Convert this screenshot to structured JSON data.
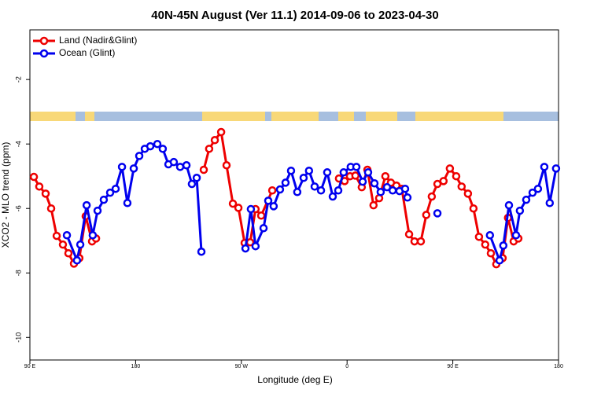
{
  "chart_data": {
    "type": "line",
    "title": "40N-45N August (Ver 11.1)   2014-09-06 to 2023-04-30",
    "x_label": "Longitude (deg E)",
    "y_label": "XCO2 - MLO trend (ppm)",
    "xlim": [
      90,
      540
    ],
    "xticks": [
      {
        "value": 90,
        "label": "90 E"
      },
      180,
      {
        "value": 270,
        "label": "90 W"
      },
      {
        "value": 360,
        "label": "0"
      },
      {
        "value": 450,
        "label": "90 E"
      },
      {
        "value": 540,
        "label": "180"
      }
    ],
    "ylim": [
      -10.7,
      -0.46
    ],
    "yticks": [
      -10,
      -8,
      -6,
      -4,
      -2
    ],
    "legend": "top-left",
    "series": [
      {
        "name": "Land (Nadir&Glint)",
        "color": "#ee0000",
        "x": [
          93.4,
          98,
          103.4,
          108.1,
          112.8,
          118.1,
          122.8,
          127.5,
          132.1,
          137.5,
          142.9,
          146.3,
          null,
          238,
          242.6,
          247.4,
          252.8,
          257.4,
          262.8,
          267.5,
          272.8,
          277.5,
          282.1,
          286.9,
          296.3,
          null,
          353.1,
          357.9,
          362.5,
          367.1,
          372.5,
          377.3,
          382.5,
          387.3,
          392.6,
          397.3,
          402,
          406.6,
          412.8,
          417.4,
          422.8,
          427.4,
          432.1,
          436.9,
          442.1,
          447.5,
          452.9,
          457.5,
          462.9,
          467.6,
          472.3,
          477.6,
          482.4,
          487,
          492.4,
          497,
          501.8,
          505.8
        ],
        "values": [
          -5.02,
          -5.32,
          -5.54,
          -6.0,
          -6.85,
          -7.12,
          -7.39,
          -7.71,
          -7.54,
          -6.24,
          -7.02,
          -6.93,
          null,
          -4.8,
          -4.15,
          -3.88,
          -3.63,
          -4.66,
          -5.85,
          -5.98,
          -7.07,
          -7.05,
          -6.02,
          -6.22,
          -5.44,
          null,
          -5.07,
          -5.15,
          -5.0,
          -4.98,
          -5.34,
          -4.8,
          -5.9,
          -5.68,
          -5.0,
          -5.2,
          -5.29,
          -5.39,
          -6.8,
          -7.02,
          -7.02,
          -6.2,
          -5.63,
          -5.24,
          -5.15,
          -4.76,
          -5.0,
          -5.32,
          -5.54,
          -6.0,
          -6.88,
          -7.12,
          -7.39,
          -7.73,
          -7.54,
          -6.29,
          -7.02,
          -6.93
        ]
      },
      {
        "name": "Ocean (Glint)",
        "color": "#0000ee",
        "x": [
          121.5,
          130.1,
          132.9,
          138.3,
          143.5,
          147.6,
          152.9,
          158.3,
          163,
          168.4,
          173,
          178.4,
          183.1,
          187.8,
          192.5,
          198.5,
          203.1,
          207.9,
          212.5,
          217.9,
          223.3,
          227.9,
          232,
          236,
          null,
          273.5,
          278.1,
          282.1,
          288.9,
          292.9,
          297.5,
          302.9,
          307.6,
          312.3,
          317.6,
          323,
          327.6,
          332.4,
          337.8,
          343.1,
          347.8,
          352.5,
          357.1,
          363.1,
          367.9,
          373.3,
          377.9,
          383.3,
          388.6,
          394,
          398.8,
          404.6,
          409.4,
          411.4,
          null,
          436.9,
          null,
          481.6,
          489.8,
          493,
          497.8,
          503.8,
          507.1,
          512.5,
          517.9,
          522.5,
          527.9,
          532.5,
          537.9
        ],
        "values": [
          -6.83,
          -7.61,
          -7.12,
          -5.9,
          -6.83,
          -6.07,
          -5.73,
          -5.51,
          -5.39,
          -4.71,
          -5.83,
          -4.76,
          -4.37,
          -4.15,
          -4.07,
          -4.0,
          -4.15,
          -4.63,
          -4.56,
          -4.71,
          -4.66,
          -5.24,
          -5.05,
          -7.34,
          null,
          -7.24,
          -6.02,
          -7.17,
          -6.61,
          -5.76,
          -5.93,
          -5.41,
          -5.2,
          -4.83,
          -5.49,
          -5.05,
          -4.83,
          -5.32,
          -5.44,
          -4.88,
          -5.63,
          -5.44,
          -4.88,
          -4.71,
          -4.71,
          -5.17,
          -4.88,
          -5.22,
          -5.49,
          -5.34,
          -5.44,
          -5.46,
          -5.39,
          -5.66,
          null,
          -6.15,
          null,
          -6.83,
          -7.61,
          -7.15,
          -5.9,
          -6.83,
          -6.07,
          -5.73,
          -5.51,
          -5.39,
          -4.71,
          -5.83,
          -4.76
        ]
      }
    ]
  }
}
